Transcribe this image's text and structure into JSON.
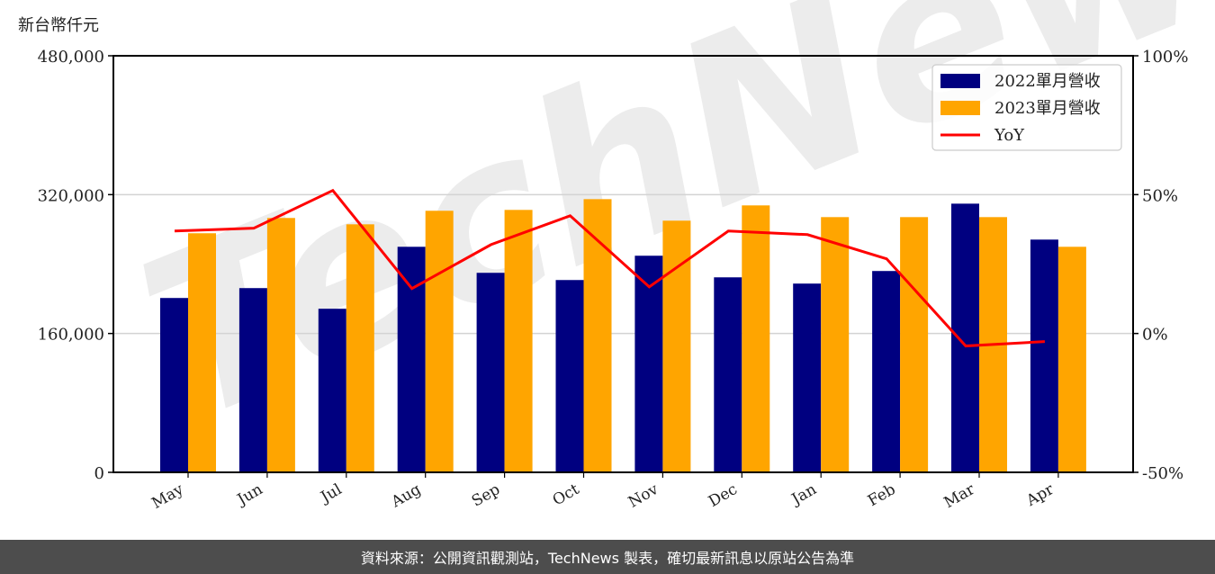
{
  "unit_label": "新台幣仟元",
  "footer": "資料來源：公開資訊觀測站，TechNews 製表，確切最新訊息以原站公告為準",
  "watermark": "TechNews",
  "colors": {
    "series_2022": "#000080",
    "series_2023": "#FFA500",
    "yoy": "#FF0000",
    "grid": "#d3d3d3",
    "footer_bg": "#4d4d4d"
  },
  "legend": [
    {
      "label": "2022單月營收",
      "type": "bar",
      "color": "#000080"
    },
    {
      "label": "2023單月營收",
      "type": "bar",
      "color": "#FFA500"
    },
    {
      "label": "YoY",
      "type": "line",
      "color": "#FF0000"
    }
  ],
  "left_axis": {
    "ticks": [
      "0",
      "160,000",
      "320,000",
      "480,000"
    ]
  },
  "right_axis": {
    "ticks": [
      "-50%",
      "0%",
      "50%",
      "100%"
    ]
  },
  "chart_data": {
    "type": "bar",
    "title": "",
    "xlabel": "",
    "ylabel": "新台幣仟元",
    "y2label": "YoY",
    "categories": [
      "May",
      "Jun",
      "Jul",
      "Aug",
      "Sep",
      "Oct",
      "Nov",
      "Dec",
      "Jan",
      "Feb",
      "Mar",
      "Apr"
    ],
    "series": [
      {
        "name": "2022單月營收",
        "type": "bar",
        "axis": "left",
        "values": [
          200900,
          212300,
          188500,
          259900,
          229900,
          221600,
          249600,
          224700,
          217500,
          232000,
          309600,
          268200
        ]
      },
      {
        "name": "2023單月營收",
        "type": "bar",
        "axis": "left",
        "values": [
          275500,
          293100,
          285800,
          301400,
          302400,
          314800,
          290000,
          307600,
          294100,
          294100,
          294100,
          259900
        ]
      },
      {
        "name": "YoY",
        "type": "line",
        "axis": "right",
        "unit": "%",
        "values": [
          36.9,
          37.9,
          51.5,
          16.2,
          32.0,
          42.4,
          16.8,
          36.9,
          35.6,
          26.9,
          -4.5,
          -2.9
        ]
      }
    ],
    "ylim": [
      0,
      480000
    ],
    "y2lim": [
      -50,
      100
    ],
    "yticks": [
      0,
      160000,
      320000,
      480000
    ],
    "y2ticks": [
      -50,
      0,
      50,
      100
    ],
    "grid": "horizontal",
    "legend_position": "upper right"
  }
}
